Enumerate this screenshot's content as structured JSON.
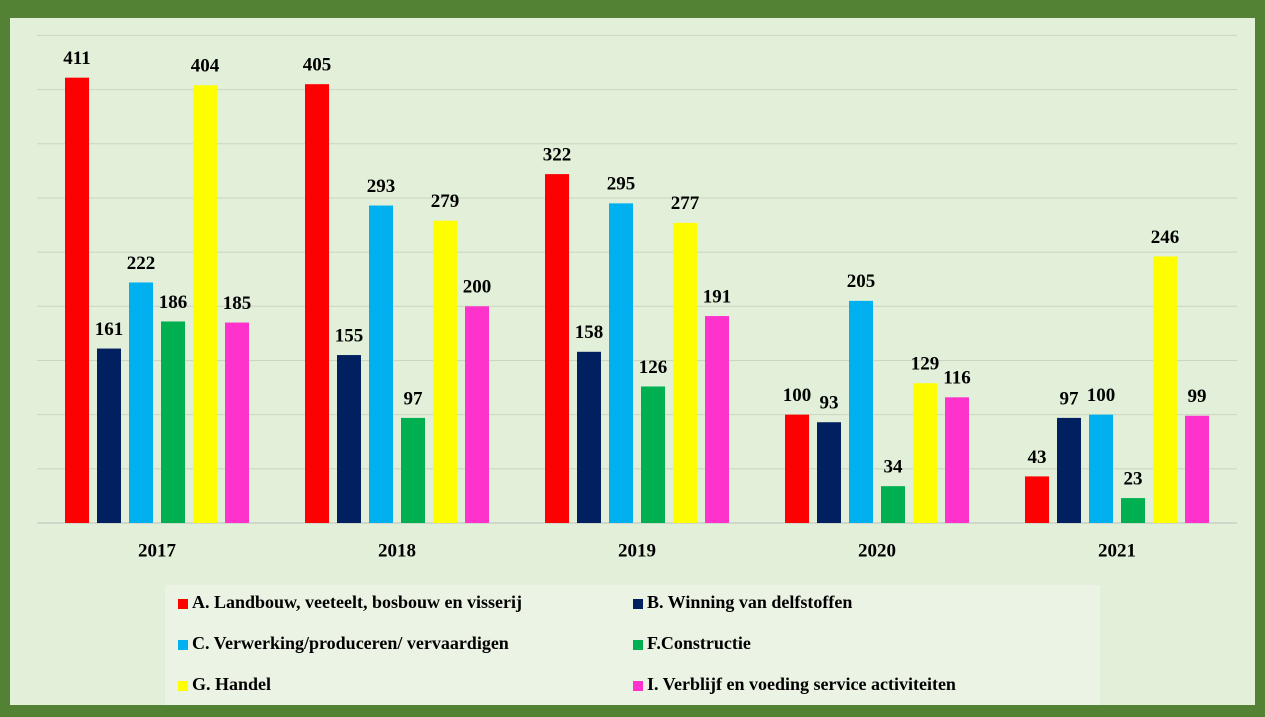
{
  "chart_data": {
    "type": "bar",
    "categories": [
      "2017",
      "2018",
      "2019",
      "2020",
      "2021"
    ],
    "series": [
      {
        "name": "A. Landbouw, veeteelt, bosbouw en visserij",
        "color": "#ff0000",
        "values": [
          411,
          405,
          322,
          100,
          43
        ]
      },
      {
        "name": "B. Winning van delfstoffen",
        "color": "#002060",
        "values": [
          161,
          155,
          158,
          93,
          97
        ]
      },
      {
        "name": "C. Verwerking/produceren/ vervaardigen",
        "color": "#00b0f0",
        "values": [
          222,
          293,
          295,
          205,
          100
        ]
      },
      {
        "name": "F.Constructie",
        "color": "#00b050",
        "values": [
          186,
          97,
          126,
          34,
          23
        ]
      },
      {
        "name": "G. Handel",
        "color": "#ffff00",
        "values": [
          404,
          279,
          277,
          129,
          246
        ]
      },
      {
        "name": "I. Verblijf en voeding service activiteiten",
        "color": "#ff33cc",
        "values": [
          185,
          200,
          191,
          116,
          99
        ]
      }
    ],
    "ylim": [
      0,
      455
    ],
    "yticks": [
      0,
      50,
      100,
      150,
      200,
      250,
      300,
      350,
      400,
      450
    ],
    "grid": true
  }
}
